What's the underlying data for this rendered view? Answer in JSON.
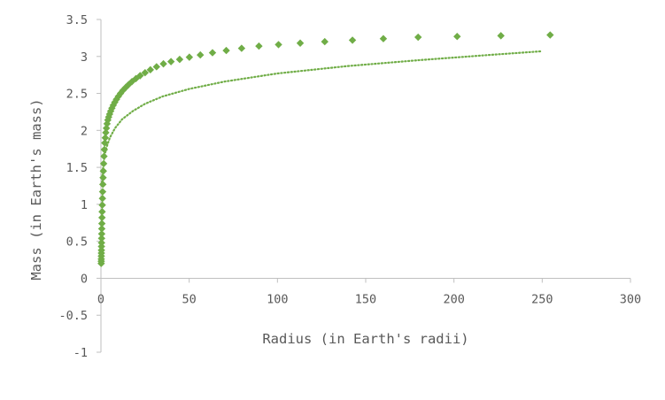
{
  "chart_data": {
    "type": "scatter",
    "title": "",
    "xlabel": "Radius (in Earth's radii)",
    "ylabel": "Mass (in Earth's mass)",
    "xlim": [
      0,
      300
    ],
    "ylim": [
      -1,
      3.5
    ],
    "x_ticks": [
      0,
      50,
      100,
      150,
      200,
      250,
      300
    ],
    "y_ticks": [
      -1,
      -0.5,
      0,
      0.5,
      1,
      1.5,
      2,
      2.5,
      3,
      3.5
    ],
    "x_tick_labels": [
      "0",
      "50",
      "100",
      "150",
      "200",
      "250",
      "300"
    ],
    "y_tick_labels": [
      "-1",
      "-0.5",
      "0",
      "0.5",
      "1",
      "1.5",
      "2",
      "2.5",
      "3",
      "3.5"
    ],
    "grid": false,
    "legend": "none",
    "marker": "diamond",
    "color": "#70AD47",
    "series": [
      {
        "x": [
          0.15,
          0.17,
          0.19,
          0.21,
          0.24,
          0.27,
          0.3,
          0.34,
          0.38,
          0.43,
          0.48,
          0.54,
          0.61,
          0.68,
          0.77,
          0.86,
          0.97,
          1.09,
          1.22,
          1.37,
          1.54,
          1.73,
          1.94,
          2.18,
          2.45,
          2.75,
          3.09,
          3.47,
          3.9,
          4.38,
          4.92,
          5.52,
          6.2,
          6.97,
          7.83,
          8.79,
          9.87,
          11.1,
          12.4,
          14.0,
          15.7,
          17.6,
          19.8,
          22.2,
          25.0,
          28.0,
          31.5,
          35.4,
          39.7,
          44.6,
          50.1,
          56.3,
          63.2,
          71.0,
          79.7,
          89.5,
          100.6,
          112.9,
          126.8,
          142.5,
          160.0,
          179.7,
          201.8,
          226.6,
          254.5
        ],
        "y": [
          0.2,
          0.23,
          0.26,
          0.3,
          0.34,
          0.38,
          0.43,
          0.48,
          0.54,
          0.6,
          0.67,
          0.74,
          0.82,
          0.9,
          0.99,
          1.08,
          1.17,
          1.27,
          1.36,
          1.45,
          1.55,
          1.65,
          1.74,
          1.83,
          1.9,
          1.97,
          2.03,
          2.09,
          2.14,
          2.18,
          2.22,
          2.26,
          2.3,
          2.34,
          2.38,
          2.42,
          2.46,
          2.5,
          2.54,
          2.58,
          2.62,
          2.66,
          2.7,
          2.74,
          2.78,
          2.82,
          2.86,
          2.9,
          2.93,
          2.96,
          2.99,
          3.02,
          3.05,
          3.08,
          3.11,
          3.14,
          3.16,
          3.18,
          3.2,
          3.22,
          3.24,
          3.26,
          3.27,
          3.28,
          3.29
        ]
      }
    ],
    "trendline": {
      "type": "log",
      "style": "dotted",
      "x": [
        0.5,
        1,
        2,
        3,
        5,
        8,
        12,
        18,
        25,
        35,
        50,
        70,
        100,
        140,
        180,
        220,
        250
      ],
      "y": [
        1.25,
        1.45,
        1.65,
        1.76,
        1.9,
        2.03,
        2.15,
        2.26,
        2.36,
        2.46,
        2.56,
        2.66,
        2.77,
        2.87,
        2.95,
        3.02,
        3.07
      ]
    }
  }
}
